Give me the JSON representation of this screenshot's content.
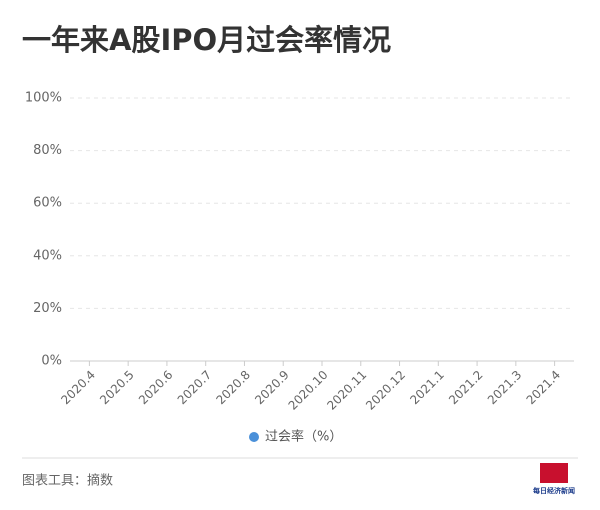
{
  "chart_data": {
    "type": "line",
    "title": "一年来A股IPO月过会率情况",
    "categories": [
      "2020.4",
      "2020.5",
      "2020.6",
      "2020.7",
      "2020.8",
      "2020.9",
      "2020.10",
      "2020.11",
      "2020.12",
      "2021.1",
      "2021.2",
      "2021.3",
      "2021.4"
    ],
    "series": [
      {
        "name": "过会率（%）",
        "color": "#4a90d9",
        "values": [
          null,
          null,
          null,
          null,
          null,
          null,
          null,
          null,
          null,
          null,
          null,
          null,
          null
        ]
      }
    ],
    "ylim": [
      0,
      100
    ],
    "yticks": [
      {
        "value": 0,
        "label": "0%"
      },
      {
        "value": 20,
        "label": "20%"
      },
      {
        "value": 40,
        "label": "40%"
      },
      {
        "value": 60,
        "label": "60%"
      },
      {
        "value": 80,
        "label": "80%"
      },
      {
        "value": 100,
        "label": "100%"
      }
    ],
    "grid": true,
    "footer": "图表工具：摘数",
    "logo": "每日经济新闻"
  }
}
